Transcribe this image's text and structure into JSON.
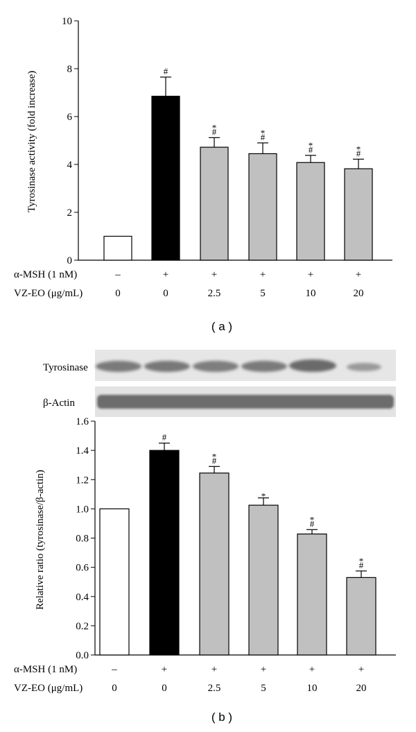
{
  "chart_data": [
    {
      "type": "bar",
      "panel_label": "( a )",
      "ylabel": "Tyrosinase activity (fold increase)",
      "ylim": [
        0,
        10
      ],
      "yticks": [
        "0",
        "2",
        "4",
        "6",
        "8",
        "10"
      ],
      "values": [
        1.0,
        6.85,
        4.72,
        4.45,
        4.08,
        3.82
      ],
      "errors": [
        0,
        0.8,
        0.4,
        0.45,
        0.3,
        0.4
      ],
      "colors": [
        "#ffffff",
        "#000000",
        "#c0c0c0",
        "#c0c0c0",
        "#c0c0c0",
        "#c0c0c0"
      ],
      "marks": [
        [],
        [
          "#"
        ],
        [
          "#",
          "*"
        ],
        [
          "#",
          "*"
        ],
        [
          "#",
          "*"
        ],
        [
          "#",
          "*"
        ]
      ],
      "conditions": [
        {
          "label": "α-MSH (1 nM)",
          "values": [
            "–",
            "+",
            "+",
            "+",
            "+",
            "+"
          ]
        },
        {
          "label": "VZ-EO (μg/mL)",
          "values": [
            "0",
            "0",
            "2.5",
            "5",
            "10",
            "20"
          ]
        }
      ]
    },
    {
      "type": "bar",
      "panel_label": "( b )",
      "ylabel": "Relative ratio (tyrosinase/β-actin)",
      "ylim": [
        0,
        1.6
      ],
      "yticks": [
        "0.0",
        "0.2",
        "0.4",
        "0.6",
        "0.8",
        "1.0",
        "1.2",
        "1.4",
        "1.6"
      ],
      "values": [
        1.0,
        1.4,
        1.245,
        1.025,
        0.828,
        0.53
      ],
      "errors": [
        0,
        0.05,
        0.045,
        0.05,
        0.03,
        0.045
      ],
      "colors": [
        "#ffffff",
        "#000000",
        "#c0c0c0",
        "#c0c0c0",
        "#c0c0c0",
        "#c0c0c0"
      ],
      "marks": [
        [],
        [
          "#"
        ],
        [
          "#",
          "*"
        ],
        [
          "*"
        ],
        [
          "#",
          "*"
        ],
        [
          "#",
          "*"
        ]
      ],
      "blots": [
        {
          "label": "Tyrosinase"
        },
        {
          "label": "β-Actin"
        }
      ],
      "conditions": [
        {
          "label": "α-MSH (1 nM)",
          "values": [
            "–",
            "+",
            "+",
            "+",
            "+",
            "+"
          ]
        },
        {
          "label": "VZ-EO (μg/mL)",
          "values": [
            "0",
            "0",
            "2.5",
            "5",
            "10",
            "20"
          ]
        }
      ]
    }
  ]
}
